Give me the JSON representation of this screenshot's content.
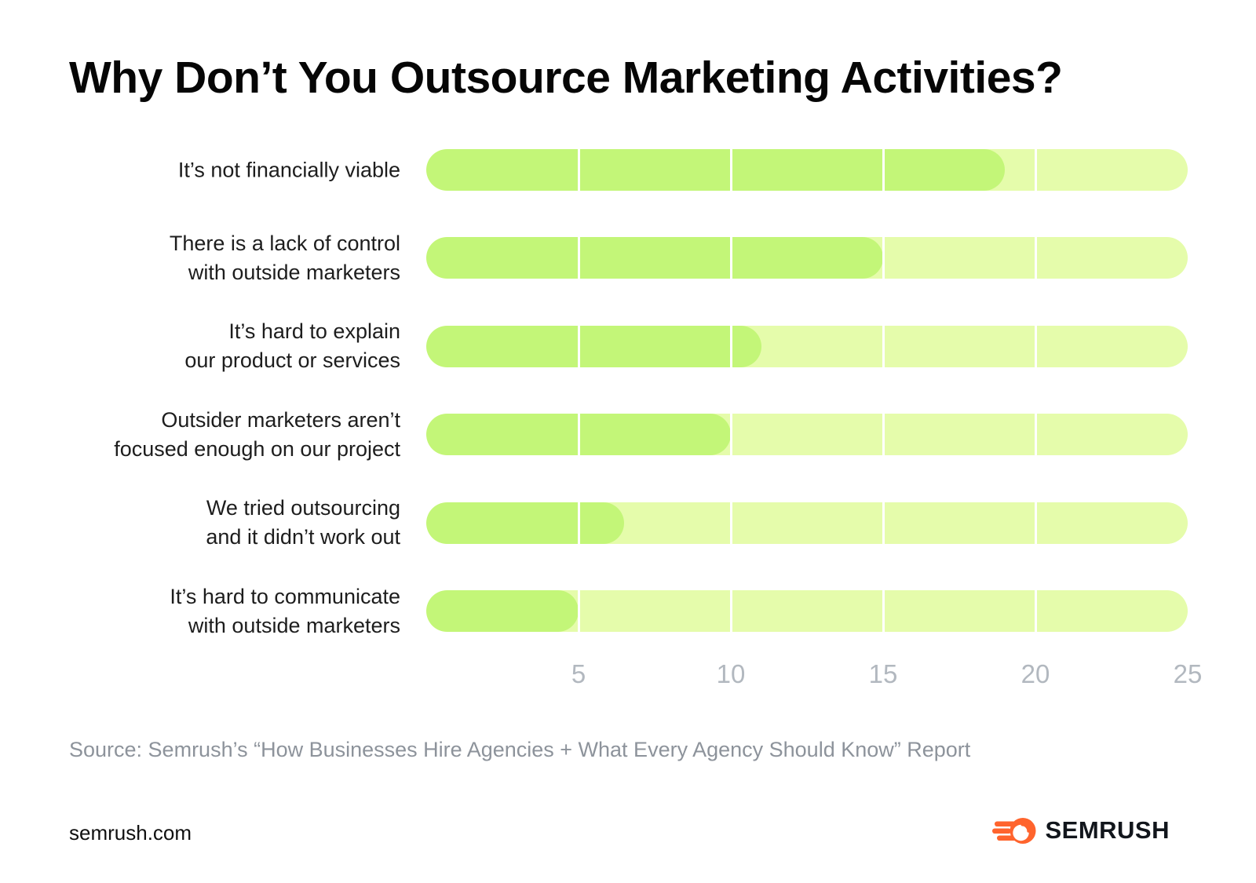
{
  "title": "Why Don’t You Outsource Marketing Activities?",
  "chart_data": {
    "type": "bar",
    "orientation": "horizontal",
    "title": "Why Don’t You Outsource Marketing Activities?",
    "categories": [
      [
        "It’s not financially viable"
      ],
      [
        "There is a lack of control",
        "with outside marketers"
      ],
      [
        "It’s hard to explain",
        "our product or services"
      ],
      [
        "Outsider marketers aren’t",
        "focused enough on our project"
      ],
      [
        "We tried outsourcing",
        "and it didn’t work out"
      ],
      [
        "It’s hard to communicate",
        "with outside marketers"
      ]
    ],
    "values": [
      19,
      15,
      11,
      10,
      6.5,
      5
    ],
    "xlabel": "",
    "ylabel": "",
    "xlim": [
      0,
      25
    ],
    "x_ticks": [
      5,
      10,
      15,
      20,
      25
    ],
    "x_gridlines": [
      5,
      10,
      15,
      20
    ],
    "legend": "none",
    "colors": {
      "bar_fill": "#c3f678",
      "bar_track": "#e5fcab",
      "gridline": "#ffffff",
      "tick_text": "#b2b8bf"
    }
  },
  "source_note": "Source: Semrush’s “How Businesses Hire Agencies + What Every Agency Should Know” Report",
  "footer": {
    "website": "semrush.com",
    "brand": "SEMRUSH",
    "brand_color": "#ff642d"
  }
}
